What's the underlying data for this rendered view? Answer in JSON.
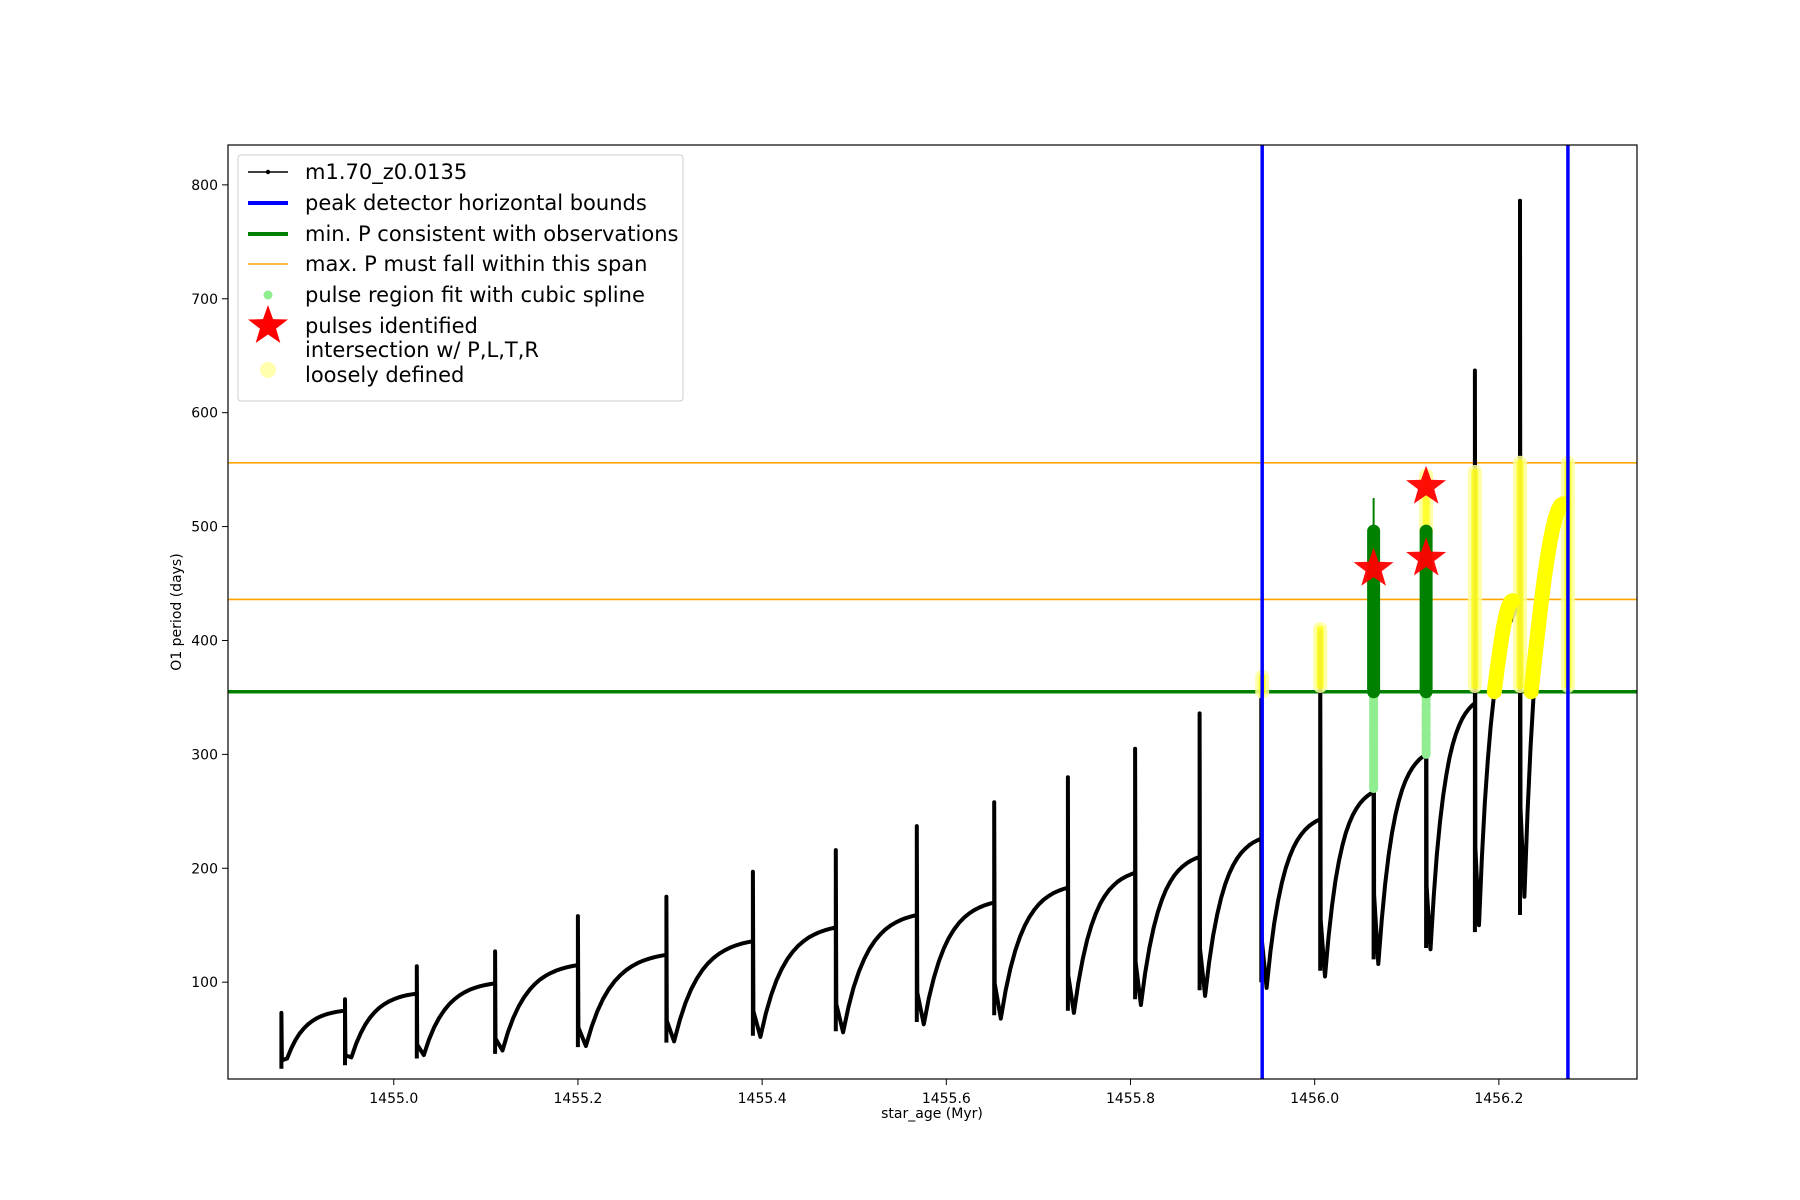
{
  "chart_data": {
    "type": "line",
    "title": "",
    "xlabel": "star_age (Myr)",
    "ylabel": "O1 period (days)",
    "xlim": [
      1454.82,
      1456.35
    ],
    "ylim": [
      15,
      835
    ],
    "x_ticks": [
      1455.0,
      1455.2,
      1455.4,
      1455.6,
      1455.8,
      1456.0,
      1456.2
    ],
    "x_tick_labels": [
      "1455.0",
      "1455.2",
      "1455.4",
      "1455.6",
      "1455.8",
      "1456.0",
      "1456.2"
    ],
    "y_ticks": [
      100,
      200,
      300,
      400,
      500,
      600,
      700,
      800
    ],
    "y_tick_labels": [
      "100",
      "200",
      "300",
      "400",
      "500",
      "600",
      "700",
      "800"
    ],
    "grid": false,
    "legend_position": "upper-left",
    "colors": {
      "track": "#000000",
      "bounds": "#0000ff",
      "min_p": "#008000",
      "max_p": "#ffa500",
      "spline": "#90ee90",
      "spline_dark": "#008000",
      "pulse": "#ff0000",
      "intersection": "#ffff00",
      "intersection_light": "#ffff99"
    },
    "legend": [
      {
        "label": "m1.70_z0.0135",
        "kind": "line-marker",
        "color": "#000000"
      },
      {
        "label": "peak detector horizontal bounds",
        "kind": "thick-line",
        "color": "#0000ff"
      },
      {
        "label": "min. P consistent with observations",
        "kind": "thick-line",
        "color": "#008000"
      },
      {
        "label": "max. P must fall within this span",
        "kind": "thin-line",
        "color": "#ffa500"
      },
      {
        "label": "pulse region fit with cubic spline",
        "kind": "dot",
        "color": "#90ee90"
      },
      {
        "label": "pulses identified",
        "kind": "star",
        "color": "#ff0000"
      },
      {
        "label": "intersection w/ P,L,T,R",
        "label2": "loosely defined",
        "kind": "circle",
        "color": "#ffff99"
      }
    ],
    "vertical_bounds": [
      1455.943,
      1456.275
    ],
    "min_period": 355,
    "max_period_span": [
      436,
      556
    ],
    "series": [
      {
        "name": "m1.70_z0.0135",
        "pulses": [
          {
            "x_start": 1454.878,
            "x_end": 1454.947,
            "spike": 73,
            "dip": 24,
            "trough": 33,
            "plateau": 75
          },
          {
            "x_start": 1454.947,
            "x_end": 1455.025,
            "spike": 85,
            "dip": 27,
            "trough": 34,
            "plateau": 90
          },
          {
            "x_start": 1455.025,
            "x_end": 1455.11,
            "spike": 114,
            "dip": 33,
            "trough": 36,
            "plateau": 99
          },
          {
            "x_start": 1455.11,
            "x_end": 1455.2,
            "spike": 127,
            "dip": 37,
            "trough": 40,
            "plateau": 115
          },
          {
            "x_start": 1455.2,
            "x_end": 1455.296,
            "spike": 158,
            "dip": 43,
            "trough": 44,
            "plateau": 124
          },
          {
            "x_start": 1455.296,
            "x_end": 1455.39,
            "spike": 175,
            "dip": 47,
            "trough": 48,
            "plateau": 136
          },
          {
            "x_start": 1455.39,
            "x_end": 1455.48,
            "spike": 197,
            "dip": 53,
            "trough": 52,
            "plateau": 148
          },
          {
            "x_start": 1455.48,
            "x_end": 1455.568,
            "spike": 216,
            "dip": 57,
            "trough": 56,
            "plateau": 159
          },
          {
            "x_start": 1455.568,
            "x_end": 1455.652,
            "spike": 237,
            "dip": 65,
            "trough": 63,
            "plateau": 170
          },
          {
            "x_start": 1455.652,
            "x_end": 1455.732,
            "spike": 258,
            "dip": 71,
            "trough": 68,
            "plateau": 183
          },
          {
            "x_start": 1455.732,
            "x_end": 1455.805,
            "spike": 280,
            "dip": 75,
            "trough": 73,
            "plateau": 196
          },
          {
            "x_start": 1455.805,
            "x_end": 1455.875,
            "spike": 305,
            "dip": 85,
            "trough": 80,
            "plateau": 210
          },
          {
            "x_start": 1455.875,
            "x_end": 1455.942,
            "spike": 336,
            "dip": 93,
            "trough": 88,
            "plateau": 226
          },
          {
            "x_start": 1455.942,
            "x_end": 1456.006,
            "spike": 355,
            "dip": 100,
            "trough": 95,
            "plateau": 243
          },
          {
            "x_start": 1456.006,
            "x_end": 1456.064,
            "spike": 408,
            "dip": 110,
            "trough": 105,
            "plateau": 267
          },
          {
            "x_start": 1456.064,
            "x_end": 1456.121,
            "spike": 500,
            "dip": 120,
            "trough": 116,
            "plateau": 300
          },
          {
            "x_start": 1456.121,
            "x_end": 1456.174,
            "spike": 495,
            "dip": 130,
            "trough": 129,
            "plateau": 345
          },
          {
            "x_start": 1456.174,
            "x_end": 1456.223,
            "spike": 637,
            "dip": 144,
            "trough": 150,
            "plateau": 430
          },
          {
            "x_start": 1456.223,
            "x_end": 1456.275,
            "spike": 786,
            "dip": 159,
            "trough": 175,
            "plateau": 520
          }
        ]
      }
    ],
    "spline_regions": [
      {
        "x": 1456.064,
        "y_min": 355,
        "y_max": 496,
        "tail_min": 270,
        "spike": 525
      },
      {
        "x": 1456.121,
        "y_min": 355,
        "y_max": 496,
        "tail_min": 300,
        "spike": 496
      }
    ],
    "pulses_identified": [
      {
        "x": 1456.064,
        "y": 463
      },
      {
        "x": 1456.121,
        "y": 472
      },
      {
        "x": 1456.121,
        "y": 535
      }
    ],
    "intersection_regions": [
      {
        "x": 1455.943,
        "y_min": 355,
        "y_max": 368
      },
      {
        "x": 1456.006,
        "y_min": 360,
        "y_max": 410
      },
      {
        "x": 1456.121,
        "y_min": 496,
        "y_max": 545
      },
      {
        "x": 1456.174,
        "y_min": 360,
        "y_max": 548
      },
      {
        "x": 1456.223,
        "y_min": 360,
        "y_max": 556
      },
      {
        "x": 1456.275,
        "y_min": 360,
        "y_max": 556
      }
    ],
    "intersection_curves": [
      {
        "x_start": 1456.195,
        "x_end": 1456.215,
        "y_start": 355,
        "y_end": 435
      },
      {
        "x_start": 1456.235,
        "x_end": 1456.27,
        "y_start": 355,
        "y_end": 520
      }
    ]
  }
}
